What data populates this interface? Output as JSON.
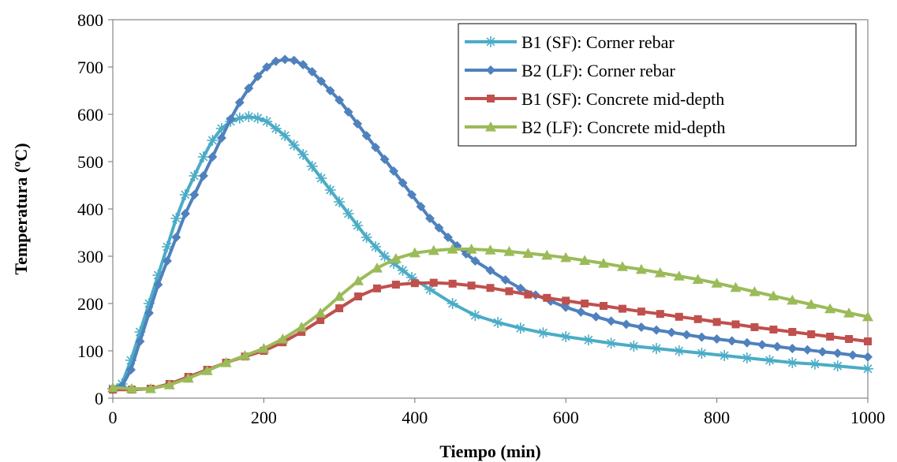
{
  "chart_data": {
    "type": "line",
    "xlabel": "Tiempo (min)",
    "ylabel": "Temperatura (ºC)",
    "xlim": [
      0,
      1000
    ],
    "ylim": [
      0,
      800
    ],
    "xticks": [
      0,
      200,
      400,
      600,
      800,
      1000
    ],
    "yticks": [
      0,
      100,
      200,
      300,
      400,
      500,
      600,
      700,
      800
    ],
    "grid": false,
    "legend_position": "top-right",
    "series": [
      {
        "name": "B1 (SF): Corner rebar",
        "color": "#4BACC6",
        "marker": "star",
        "x": [
          0,
          12,
          24,
          36,
          48,
          60,
          72,
          84,
          96,
          108,
          120,
          132,
          144,
          156,
          168,
          180,
          192,
          204,
          216,
          228,
          240,
          252,
          264,
          276,
          288,
          300,
          312,
          324,
          336,
          348,
          360,
          372,
          384,
          396,
          420,
          450,
          480,
          510,
          540,
          570,
          600,
          630,
          660,
          690,
          720,
          750,
          780,
          810,
          840,
          870,
          900,
          930,
          960,
          1000
        ],
        "y": [
          20,
          30,
          80,
          140,
          200,
          260,
          320,
          380,
          430,
          470,
          510,
          545,
          570,
          585,
          592,
          595,
          592,
          585,
          570,
          555,
          535,
          515,
          490,
          465,
          440,
          415,
          390,
          365,
          340,
          320,
          300,
          285,
          270,
          255,
          230,
          200,
          175,
          160,
          148,
          138,
          130,
          123,
          116,
          110,
          105,
          100,
          95,
          90,
          85,
          80,
          75,
          72,
          68,
          62
        ]
      },
      {
        "name": "B2 (LF): Corner rebar",
        "color": "#4F81BD",
        "marker": "diamond",
        "x": [
          0,
          12,
          24,
          36,
          48,
          60,
          72,
          84,
          96,
          108,
          120,
          132,
          144,
          156,
          168,
          180,
          192,
          204,
          216,
          228,
          240,
          252,
          264,
          276,
          288,
          300,
          312,
          324,
          336,
          348,
          360,
          372,
          384,
          396,
          408,
          420,
          432,
          444,
          456,
          468,
          480,
          500,
          520,
          540,
          560,
          580,
          600,
          620,
          640,
          660,
          680,
          700,
          720,
          740,
          760,
          780,
          800,
          820,
          840,
          860,
          880,
          900,
          920,
          940,
          960,
          980,
          1000
        ],
        "y": [
          20,
          25,
          60,
          120,
          180,
          240,
          290,
          340,
          390,
          430,
          470,
          510,
          550,
          590,
          625,
          655,
          680,
          700,
          712,
          716,
          714,
          705,
          690,
          670,
          650,
          630,
          605,
          580,
          555,
          530,
          505,
          480,
          455,
          430,
          405,
          380,
          360,
          340,
          322,
          305,
          290,
          270,
          250,
          232,
          218,
          205,
          192,
          182,
          172,
          163,
          156,
          150,
          144,
          139,
          134,
          129,
          125,
          121,
          117,
          113,
          109,
          105,
          102,
          98,
          95,
          91,
          87
        ]
      },
      {
        "name": "B1 (SF): Concrete mid-depth",
        "color": "#C0504D",
        "marker": "square",
        "x": [
          0,
          25,
          50,
          75,
          100,
          125,
          150,
          175,
          200,
          225,
          250,
          275,
          300,
          325,
          350,
          375,
          400,
          425,
          450,
          475,
          500,
          525,
          550,
          575,
          600,
          625,
          650,
          675,
          700,
          725,
          750,
          775,
          800,
          825,
          850,
          875,
          900,
          925,
          950,
          975,
          1000
        ],
        "y": [
          18,
          18,
          20,
          30,
          45,
          60,
          75,
          88,
          100,
          118,
          140,
          165,
          190,
          215,
          232,
          240,
          243,
          244,
          242,
          238,
          233,
          226,
          219,
          212,
          206,
          200,
          195,
          189,
          183,
          178,
          172,
          167,
          161,
          156,
          150,
          145,
          140,
          135,
          130,
          125,
          120
        ]
      },
      {
        "name": "B2 (LF): Concrete mid-depth",
        "color": "#9BBB59",
        "marker": "triangle",
        "x": [
          0,
          25,
          50,
          75,
          100,
          125,
          150,
          175,
          200,
          225,
          250,
          275,
          300,
          325,
          350,
          375,
          400,
          425,
          450,
          475,
          500,
          525,
          550,
          575,
          600,
          625,
          650,
          675,
          700,
          725,
          750,
          775,
          800,
          825,
          850,
          875,
          900,
          925,
          950,
          975,
          1000
        ],
        "y": [
          22,
          20,
          20,
          28,
          42,
          58,
          75,
          90,
          105,
          125,
          150,
          180,
          215,
          248,
          275,
          295,
          307,
          312,
          315,
          315,
          313,
          310,
          306,
          302,
          297,
          291,
          285,
          278,
          272,
          265,
          258,
          251,
          243,
          234,
          225,
          216,
          207,
          198,
          189,
          180,
          172
        ]
      }
    ]
  }
}
